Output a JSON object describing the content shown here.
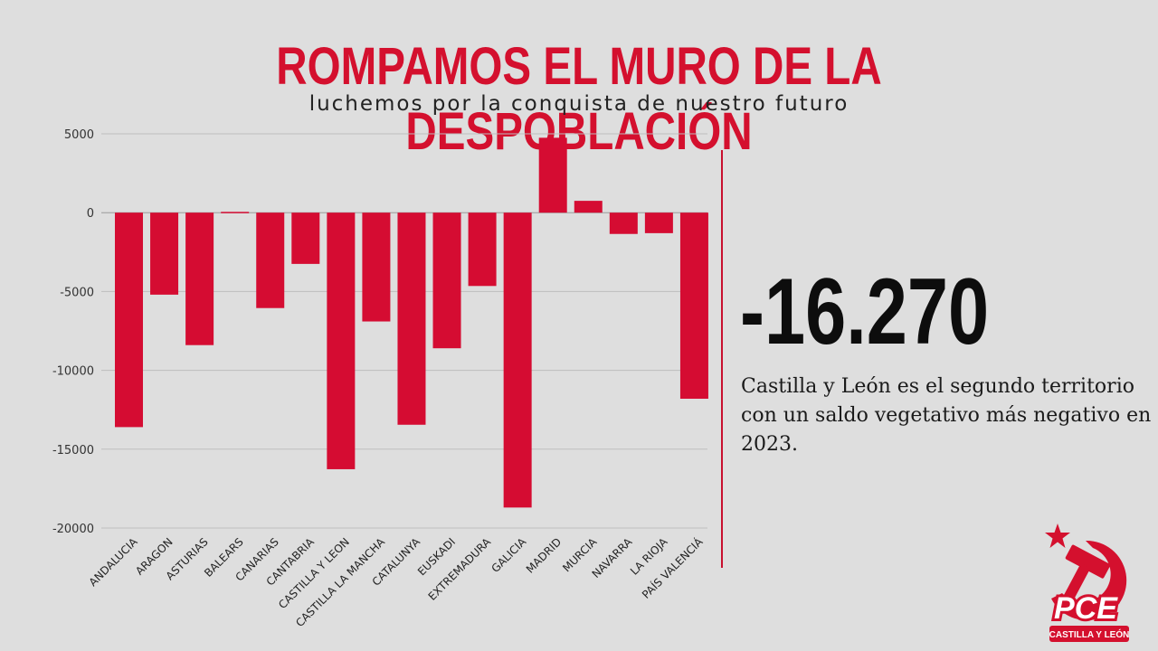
{
  "header": {
    "title": "ROMPAMOS EL MURO DE LA DESPOBLACIÓN",
    "subtitle": "luchemos por la conquista de nuestro futuro"
  },
  "highlight": {
    "value": "-16.270",
    "description": "Castilla y León es el segundo territorio con un saldo vegetativo más negativo en 2023."
  },
  "logo": {
    "acronym": "PCE",
    "region": "CASTILLA Y LEÓN"
  },
  "colors": {
    "accent": "#d4102e",
    "bar": "#d50c32",
    "background": "#dedede"
  },
  "chart_data": {
    "type": "bar",
    "title": "",
    "xlabel": "",
    "ylabel": "",
    "categories": [
      "ANDALUCIA",
      "ARAGON",
      "ASTURIAS",
      "BALEARS",
      "CANARIAS",
      "CANTABRIA",
      "CASTILLA Y LEON",
      "CASTILLA LA MANCHA",
      "CATALUNYA",
      "EUSKADI",
      "EXTREMADURA",
      "GALICIA",
      "MADRID",
      "MURCIA",
      "NAVARRA",
      "LA RIOJA",
      "PAÍS VALENCIÁ"
    ],
    "values": [
      -13600,
      -5200,
      -8400,
      50,
      -6050,
      -3250,
      -16270,
      -6900,
      -13450,
      -8600,
      -4650,
      -18700,
      4750,
      750,
      -1350,
      -1300,
      -11800
    ],
    "ylim": [
      -20000,
      5000
    ],
    "yticks": [
      5000,
      0,
      -5000,
      -10000,
      -15000,
      -20000
    ],
    "grid": true,
    "legend": "none"
  }
}
